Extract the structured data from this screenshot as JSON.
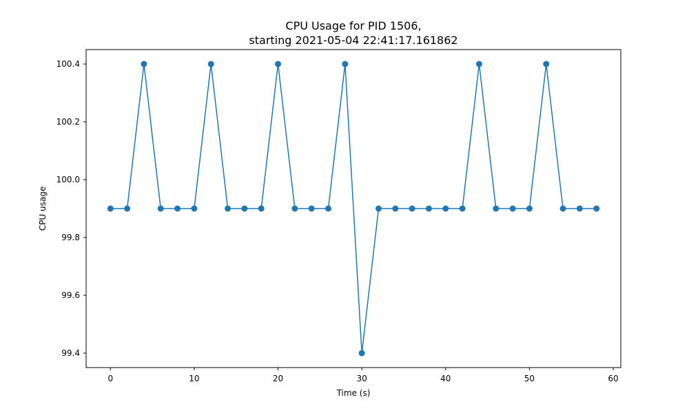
{
  "chart_data": {
    "type": "line",
    "title_line1": "CPU Usage for PID 1506,",
    "title_line2": "starting 2021-05-04 22:41:17.161862",
    "xlabel": "Time (s)",
    "ylabel": "CPU usage",
    "xlim": [
      -2.9,
      60.9
    ],
    "ylim": [
      99.35,
      100.45
    ],
    "xticks": [
      0,
      10,
      20,
      30,
      40,
      50,
      60
    ],
    "yticks": [
      99.4,
      99.6,
      99.8,
      100.0,
      100.2,
      100.4
    ],
    "xtick_labels": [
      "0",
      "10",
      "20",
      "30",
      "40",
      "50",
      "60"
    ],
    "ytick_labels": [
      "99.4",
      "99.6",
      "99.8",
      "100.0",
      "100.2",
      "100.4"
    ],
    "grid": false,
    "legend": "none",
    "color": "#1f77b4",
    "marker": "circle",
    "series": [
      {
        "x": [
          0,
          2,
          4,
          6,
          8,
          10,
          12,
          14,
          16,
          18,
          20,
          22,
          24,
          26,
          28,
          30,
          32,
          34,
          36,
          38,
          40,
          42,
          44,
          46,
          48,
          50,
          52,
          54,
          56,
          58
        ],
        "values": [
          99.9,
          99.9,
          100.4,
          99.9,
          99.9,
          99.9,
          100.4,
          99.9,
          99.9,
          99.9,
          100.4,
          99.9,
          99.9,
          99.9,
          100.4,
          99.4,
          99.9,
          99.9,
          99.9,
          99.9,
          99.9,
          99.9,
          100.4,
          99.9,
          99.9,
          99.9,
          100.4,
          99.9,
          99.9,
          99.9
        ]
      }
    ]
  }
}
